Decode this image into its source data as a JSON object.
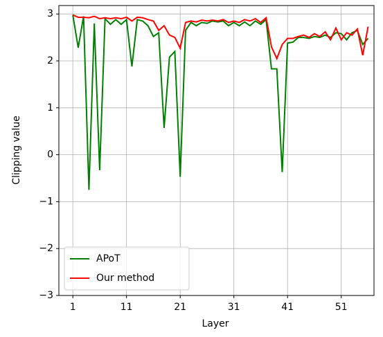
{
  "chart_data": {
    "type": "line",
    "xlabel": "Layer",
    "ylabel": "Clipping value",
    "x": [
      1,
      2,
      3,
      4,
      5,
      6,
      7,
      8,
      9,
      10,
      11,
      12,
      13,
      14,
      15,
      16,
      17,
      18,
      19,
      20,
      21,
      22,
      23,
      24,
      25,
      26,
      27,
      28,
      29,
      30,
      31,
      32,
      33,
      34,
      35,
      36,
      37,
      38,
      39,
      40,
      41,
      42,
      43,
      44,
      45,
      46,
      47,
      48,
      49,
      50,
      51,
      52,
      53,
      54,
      55,
      56
    ],
    "series": [
      {
        "name": "APoT",
        "color": "#008000",
        "values": [
          2.98,
          2.28,
          2.95,
          -0.75,
          2.8,
          -0.33,
          2.9,
          2.78,
          2.88,
          2.78,
          2.88,
          1.88,
          2.88,
          2.85,
          2.75,
          2.52,
          2.6,
          0.57,
          2.08,
          2.2,
          -0.47,
          2.65,
          2.82,
          2.75,
          2.82,
          2.8,
          2.85,
          2.83,
          2.85,
          2.75,
          2.82,
          2.75,
          2.83,
          2.75,
          2.85,
          2.78,
          2.88,
          1.83,
          1.83,
          -0.37,
          2.38,
          2.4,
          2.5,
          2.5,
          2.48,
          2.52,
          2.5,
          2.55,
          2.5,
          2.6,
          2.58,
          2.45,
          2.6,
          2.65,
          2.35,
          2.48
        ]
      },
      {
        "name": "Our method",
        "color": "#ff0000",
        "values": [
          2.98,
          2.93,
          2.93,
          2.92,
          2.95,
          2.9,
          2.92,
          2.9,
          2.92,
          2.9,
          2.93,
          2.85,
          2.93,
          2.92,
          2.88,
          2.85,
          2.65,
          2.75,
          2.55,
          2.5,
          2.27,
          2.82,
          2.85,
          2.83,
          2.87,
          2.85,
          2.87,
          2.85,
          2.88,
          2.82,
          2.85,
          2.82,
          2.88,
          2.85,
          2.9,
          2.82,
          2.92,
          2.3,
          2.05,
          2.35,
          2.48,
          2.48,
          2.52,
          2.55,
          2.5,
          2.58,
          2.52,
          2.62,
          2.45,
          2.7,
          2.45,
          2.6,
          2.55,
          2.68,
          2.12,
          2.73
        ]
      }
    ],
    "xlim": [
      -1.6,
      57.1
    ],
    "xticks": [
      1,
      11,
      21,
      31,
      41,
      51
    ],
    "ylim": [
      -3,
      3.18
    ],
    "yticks": [
      {
        "value": -3,
        "label": "−3"
      },
      {
        "value": -2,
        "label": "−2"
      },
      {
        "value": -1,
        "label": "−1"
      },
      0,
      1,
      2,
      3
    ],
    "grid": true,
    "legend": "lower left"
  }
}
